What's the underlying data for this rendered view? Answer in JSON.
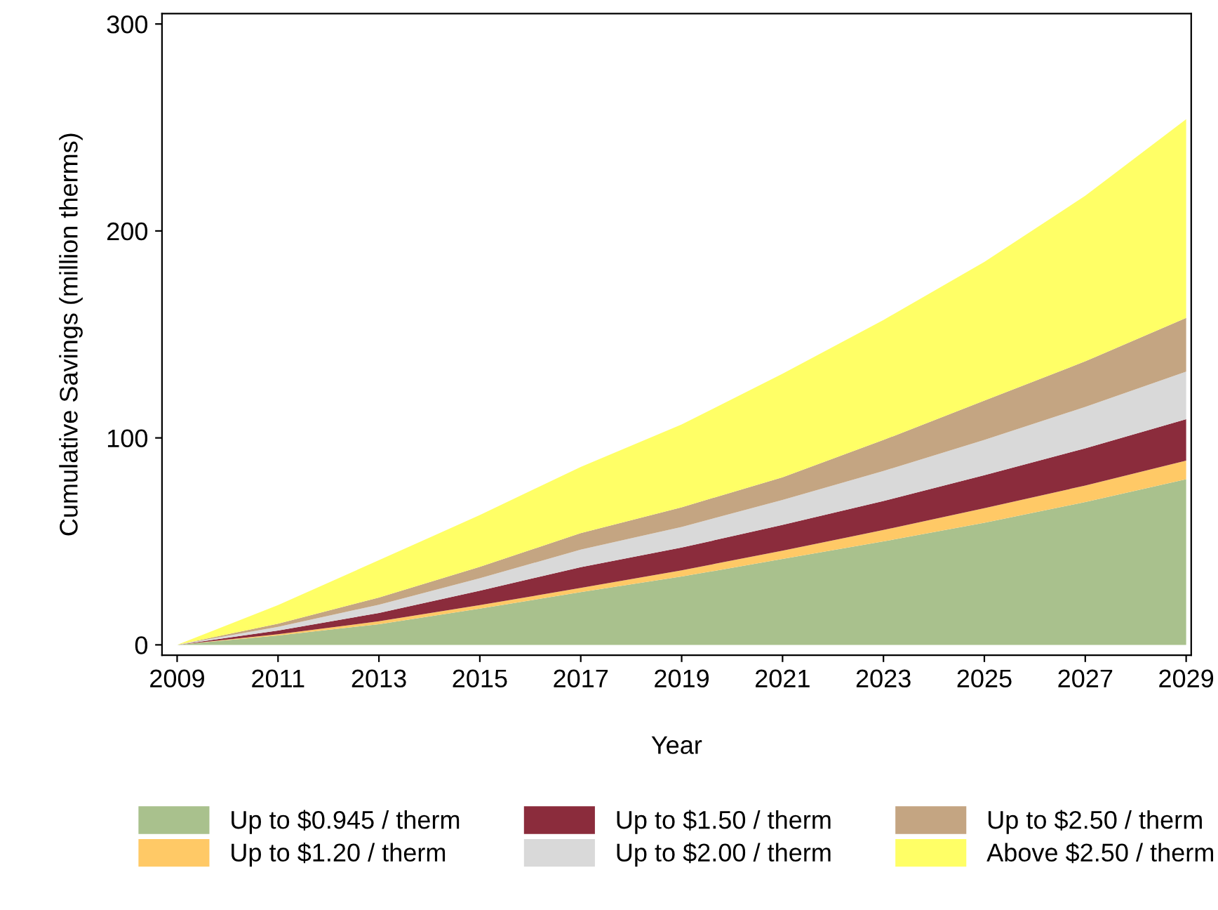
{
  "chart_data": {
    "type": "area",
    "stacked": true,
    "xlabel": "Year",
    "ylabel": "Cumulative Savings (million therms)",
    "x": [
      2009,
      2011,
      2013,
      2015,
      2017,
      2019,
      2021,
      2023,
      2025,
      2027,
      2029
    ],
    "series": [
      {
        "name": "Up to $0.945 / therm",
        "color": "#a9c18d",
        "values": [
          0,
          4.5,
          10,
          17.5,
          25.5,
          33,
          41.5,
          50,
          59,
          69,
          80
        ]
      },
      {
        "name": "Up to $1.20 / therm",
        "color": "#ffc966",
        "values": [
          0,
          0.6,
          1.4,
          1.7,
          2,
          3,
          4,
          5.5,
          7,
          8,
          9
        ]
      },
      {
        "name": "Up to $1.50 / therm",
        "color": "#8b2c3c",
        "values": [
          0,
          1.8,
          4,
          7,
          10,
          11,
          12.5,
          14,
          16,
          18,
          20
        ]
      },
      {
        "name": "Up to $2.00 / therm",
        "color": "#d9d9d9",
        "values": [
          0,
          1.8,
          4,
          6,
          8.5,
          10,
          12,
          14.5,
          17,
          20,
          23
        ]
      },
      {
        "name": "Up to $2.50 / therm",
        "color": "#c4a582",
        "values": [
          0,
          1.5,
          3.5,
          5.5,
          8,
          9.5,
          11,
          15,
          19,
          22,
          26
        ]
      },
      {
        "name": "Above $2.50 / therm",
        "color": "#ffff66",
        "values": [
          0,
          9,
          18,
          25,
          32,
          40,
          50,
          58,
          67,
          80,
          96
        ]
      }
    ],
    "xlim": [
      2008.7,
      2029.1
    ],
    "xticks": [
      2009,
      2011,
      2013,
      2015,
      2017,
      2019,
      2021,
      2023,
      2025,
      2027,
      2029
    ],
    "ylim": [
      -5,
      305
    ],
    "yticks": [
      0,
      100,
      200,
      300
    ],
    "grid": false,
    "legend": "bottom"
  }
}
